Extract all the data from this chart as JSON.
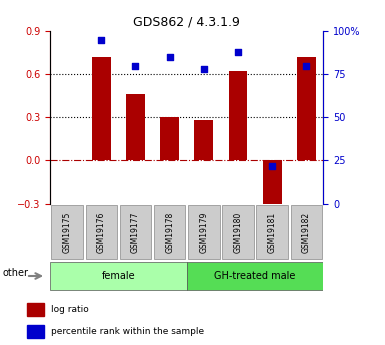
{
  "title": "GDS862 / 4.3.1.9",
  "samples": [
    "GSM19175",
    "GSM19176",
    "GSM19177",
    "GSM19178",
    "GSM19179",
    "GSM19180",
    "GSM19181",
    "GSM19182"
  ],
  "log_ratio": [
    0.0,
    0.72,
    0.46,
    0.3,
    0.28,
    0.62,
    -0.33,
    0.72
  ],
  "percentile_rank": [
    null,
    95,
    80,
    85,
    78,
    88,
    22,
    80
  ],
  "groups": [
    {
      "label": "female",
      "start": 0,
      "end": 4,
      "color": "#aaffaa"
    },
    {
      "label": "GH-treated male",
      "start": 4,
      "end": 8,
      "color": "#55dd55"
    }
  ],
  "bar_color": "#aa0000",
  "dot_color": "#0000cc",
  "ylim_left": [
    -0.3,
    0.9
  ],
  "ylim_right": [
    0,
    100
  ],
  "yticks_left": [
    -0.3,
    0.0,
    0.3,
    0.6,
    0.9
  ],
  "yticks_right": [
    0,
    25,
    50,
    75,
    100
  ],
  "ytick_labels_right": [
    "0",
    "25",
    "50",
    "75",
    "100%"
  ],
  "hlines": [
    0.3,
    0.6
  ],
  "hline_zero": 0.0,
  "left_yaxis_color": "#cc0000",
  "right_yaxis_color": "#0000cc",
  "bar_width": 0.55,
  "other_label": "other",
  "legend_items": [
    {
      "color": "#aa0000",
      "label": "log ratio"
    },
    {
      "color": "#0000cc",
      "label": "percentile rank within the sample"
    }
  ]
}
